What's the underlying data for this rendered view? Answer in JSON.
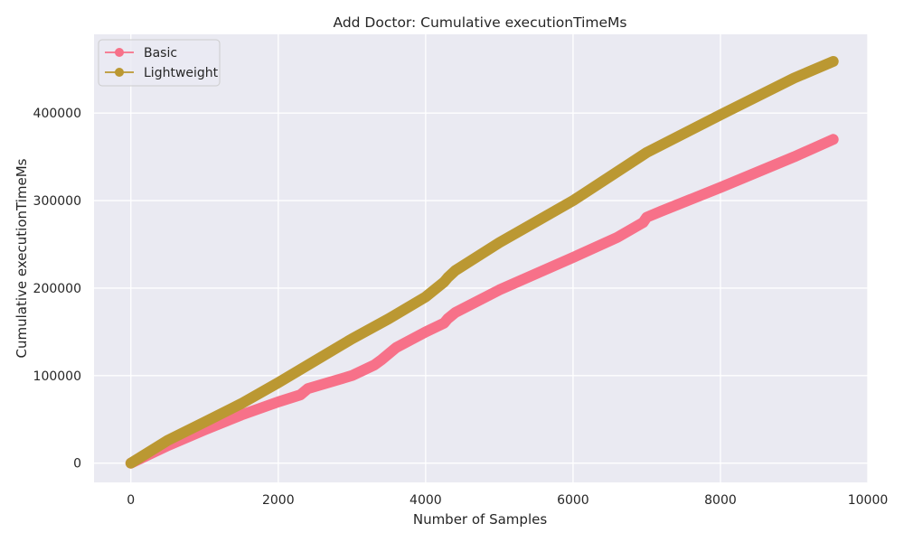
{
  "chart_data": {
    "type": "line",
    "title": "Add Doctor: Cumulative executionTimeMs",
    "xlabel": "Number of Samples",
    "ylabel": "Cumulative executionTimeMs",
    "xlim": [
      -500,
      10000
    ],
    "ylim": [
      -22000,
      490000
    ],
    "x_ticks": [
      0,
      2000,
      4000,
      6000,
      8000,
      10000
    ],
    "y_ticks": [
      0,
      100000,
      200000,
      300000,
      400000
    ],
    "grid": true,
    "background": "#eaeaf2",
    "legend_position": "upper-left",
    "series": [
      {
        "name": "Basic",
        "color": "#f77189",
        "x": [
          0,
          500,
          1000,
          1500,
          2000,
          2300,
          2400,
          3000,
          3300,
          3400,
          3600,
          4000,
          4250,
          4300,
          4400,
          5000,
          6000,
          6600,
          6950,
          7000,
          7200,
          8000,
          9000,
          9530
        ],
        "y": [
          0,
          20000,
          38000,
          55000,
          70000,
          78000,
          85000,
          100000,
          112000,
          118000,
          132000,
          150000,
          160000,
          165000,
          172000,
          198000,
          235000,
          258000,
          275000,
          281000,
          288000,
          315000,
          350000,
          370000
        ]
      },
      {
        "name": "Lightweight",
        "color": "#bb9832",
        "x": [
          0,
          500,
          1000,
          1500,
          2000,
          2500,
          3000,
          3500,
          4000,
          4250,
          4300,
          4400,
          5000,
          6000,
          7000,
          8000,
          9000,
          9530
        ],
        "y": [
          0,
          26000,
          47000,
          68000,
          92000,
          117000,
          142000,
          165000,
          190000,
          207000,
          212000,
          220000,
          252000,
          300000,
          355000,
          398000,
          440000,
          459000
        ]
      }
    ]
  }
}
